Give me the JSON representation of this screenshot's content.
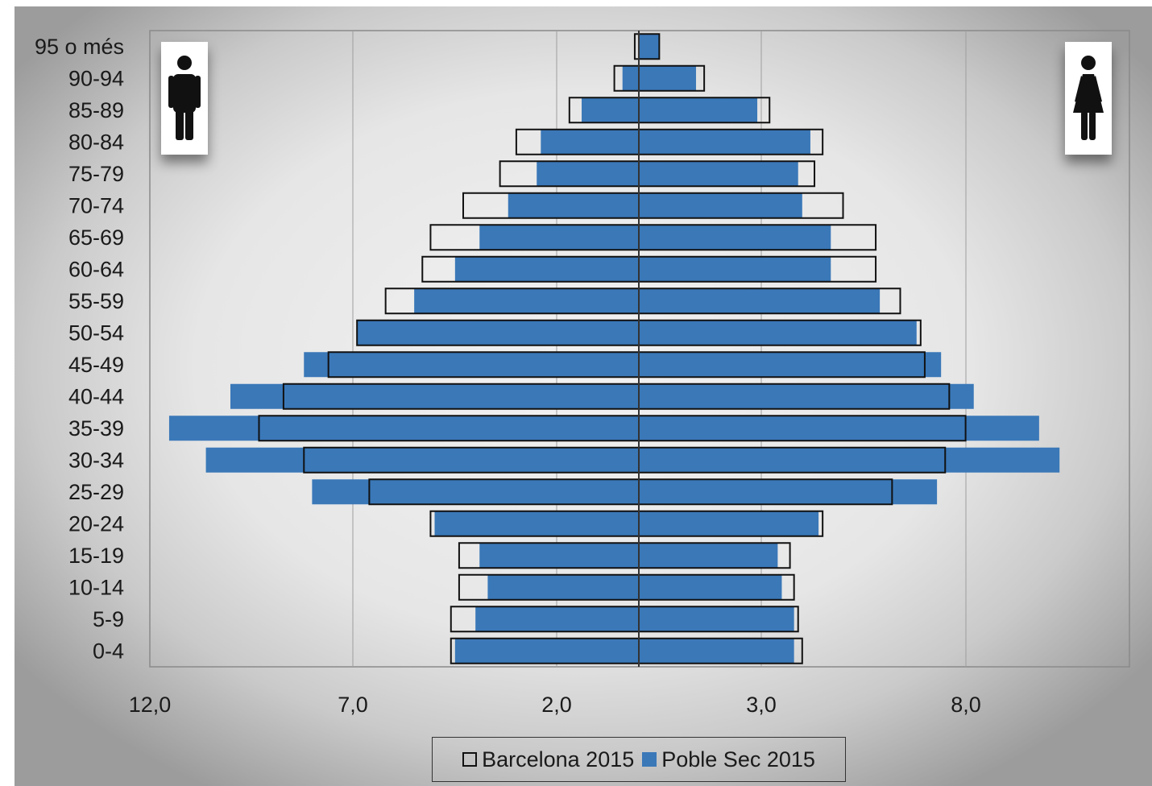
{
  "chart_data": {
    "type": "bar",
    "orientation": "horizontal",
    "layout": "population-pyramid",
    "categories": [
      "0-4",
      "5-9",
      "10-14",
      "15-19",
      "20-24",
      "25-29",
      "30-34",
      "35-39",
      "40-44",
      "45-49",
      "50-54",
      "55-59",
      "60-64",
      "65-69",
      "70-74",
      "75-79",
      "80-84",
      "85-89",
      "90-94",
      "95 o més"
    ],
    "x_tick_labels": [
      "12,0",
      "7,0",
      "2,0",
      "3,0",
      "8,0"
    ],
    "series": [
      {
        "name": "Barcelona 2015",
        "style": "outline",
        "men": [
          4.6,
          4.6,
          4.4,
          4.4,
          5.1,
          6.6,
          8.2,
          9.3,
          8.7,
          7.6,
          6.9,
          6.2,
          5.3,
          5.1,
          4.3,
          3.4,
          3.0,
          1.7,
          0.6,
          0.1
        ],
        "women": [
          4.0,
          3.9,
          3.8,
          3.7,
          4.5,
          6.2,
          7.5,
          8.0,
          7.6,
          7.0,
          6.9,
          6.4,
          5.8,
          5.8,
          5.0,
          4.3,
          4.5,
          3.2,
          1.6,
          0.5
        ]
      },
      {
        "name": "Poble Sec 2015",
        "style": "filled",
        "men": [
          4.5,
          4.0,
          3.7,
          3.9,
          5.0,
          8.0,
          10.6,
          11.5,
          10.0,
          8.2,
          6.9,
          5.5,
          4.5,
          3.9,
          3.2,
          2.5,
          2.4,
          1.4,
          0.4,
          0.0
        ],
        "women": [
          3.8,
          3.8,
          3.5,
          3.4,
          4.4,
          7.3,
          10.3,
          9.8,
          8.2,
          7.4,
          6.8,
          5.9,
          4.7,
          4.7,
          4.0,
          3.9,
          4.2,
          2.9,
          1.4,
          0.5
        ]
      }
    ],
    "ylim_note": "symmetric axis, max 12",
    "grid": "vertical",
    "legend_position": "bottom-center",
    "colors": {
      "filled": "#3a78b8",
      "outline": "#111111",
      "grid": "#9e9e9e"
    }
  },
  "icons": {
    "left": "man-icon",
    "right": "woman-icon"
  },
  "legend": {
    "barcelona_label": "Barcelona 2015",
    "poblesec_label": "Poble Sec 2015"
  }
}
